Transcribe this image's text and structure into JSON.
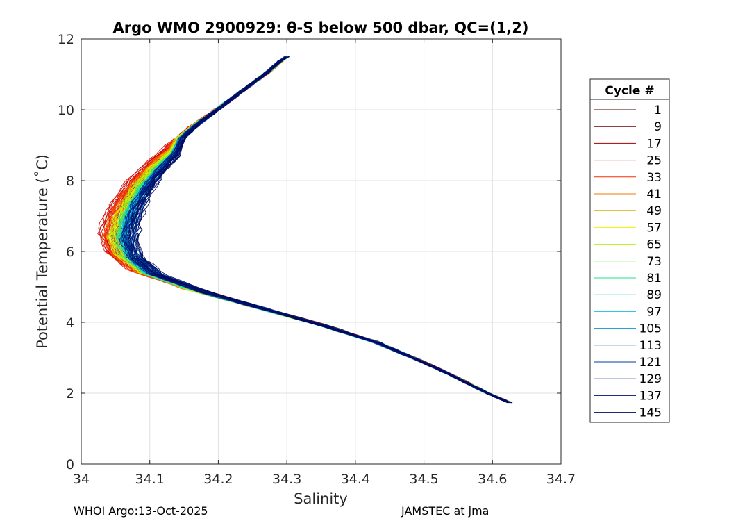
{
  "chart_data": {
    "type": "line",
    "title": "Argo WMO 2900929: θ-S below 500 dbar,  QC=(1,2)",
    "xlabel": "Salinity",
    "ylabel": "Potential Temperature (˚C)",
    "xlim": [
      34,
      34.7
    ],
    "ylim": [
      0,
      12
    ],
    "x_ticks": [
      "34",
      "34.1",
      "34.2",
      "34.3",
      "34.4",
      "34.5",
      "34.6",
      "34.7"
    ],
    "y_ticks": [
      "0",
      "2",
      "4",
      "6",
      "8",
      "10",
      "12"
    ],
    "grid": true,
    "legend": {
      "title": "Cycle #",
      "placement": "outside-right",
      "entries": [
        "1",
        "9",
        "17",
        "25",
        "33",
        "41",
        "49",
        "57",
        "65",
        "73",
        "81",
        "89",
        "97",
        "105",
        "113",
        "121",
        "129",
        "137",
        "145"
      ],
      "colors": [
        "#4a0000",
        "#6e0000",
        "#a00000",
        "#d40000",
        "#ff2a00",
        "#f07a00",
        "#d9b000",
        "#f2f200",
        "#b6f20a",
        "#5cf23a",
        "#1fe08a",
        "#1ad2c8",
        "#10c0e0",
        "#0098d0",
        "#0068b8",
        "#003e9e",
        "#001c80",
        "#00126c",
        "#000a5e"
      ]
    },
    "profile_shape": {
      "theta": [
        11.5,
        11.0,
        10.5,
        10.0,
        9.5,
        9.0,
        8.5,
        8.0,
        7.5,
        7.0,
        6.5,
        6.0,
        5.5,
        5.0,
        4.5,
        4.0,
        3.5,
        3.0,
        2.5,
        2.0,
        1.75
      ],
      "salinity": [
        34.3,
        34.27,
        34.235,
        34.2,
        34.165,
        34.135,
        34.11,
        34.09,
        34.075,
        34.065,
        34.06,
        34.07,
        34.1,
        34.17,
        34.26,
        34.35,
        34.43,
        34.49,
        34.545,
        34.595,
        34.625
      ]
    },
    "series": [
      {
        "name": "1",
        "s_offset": 0.0,
        "t_scale": 0.985
      },
      {
        "name": "9",
        "s_offset": -0.012,
        "t_scale": 0.99
      },
      {
        "name": "17",
        "s_offset": -0.02,
        "t_scale": 0.995
      },
      {
        "name": "25",
        "s_offset": -0.028,
        "t_scale": 1.0
      },
      {
        "name": "33",
        "s_offset": -0.022,
        "t_scale": 0.99
      },
      {
        "name": "41",
        "s_offset": -0.016,
        "t_scale": 0.985
      },
      {
        "name": "49",
        "s_offset": -0.012,
        "t_scale": 0.985
      },
      {
        "name": "57",
        "s_offset": -0.01,
        "t_scale": 0.98
      },
      {
        "name": "65",
        "s_offset": -0.008,
        "t_scale": 0.98
      },
      {
        "name": "73",
        "s_offset": -0.006,
        "t_scale": 0.975
      },
      {
        "name": "81",
        "s_offset": -0.004,
        "t_scale": 0.975
      },
      {
        "name": "89",
        "s_offset": 0.0,
        "t_scale": 0.97
      },
      {
        "name": "97",
        "s_offset": 0.004,
        "t_scale": 0.97
      },
      {
        "name": "105",
        "s_offset": 0.006,
        "t_scale": 0.968
      },
      {
        "name": "113",
        "s_offset": 0.008,
        "t_scale": 0.965
      },
      {
        "name": "121",
        "s_offset": 0.01,
        "t_scale": 0.965
      },
      {
        "name": "129",
        "s_offset": 0.006,
        "t_scale": 0.97
      },
      {
        "name": "137",
        "s_offset": 0.012,
        "t_scale": 0.962
      },
      {
        "name": "145",
        "s_offset": 0.014,
        "t_scale": 0.96
      }
    ]
  },
  "footer": {
    "left": "WHOI Argo:13-Oct-2025",
    "right": "JAMSTEC at jma"
  }
}
